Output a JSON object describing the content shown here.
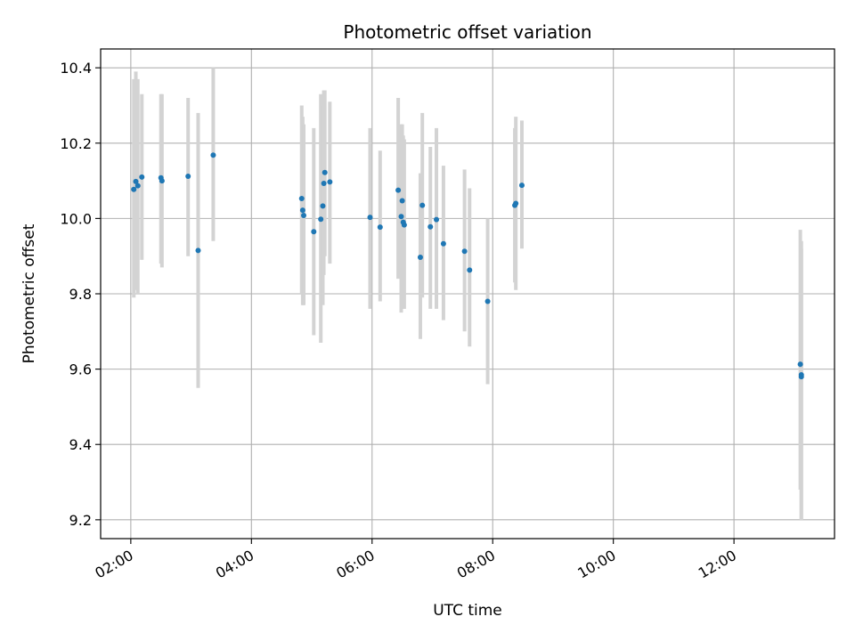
{
  "chart_data": {
    "type": "scatter",
    "title": "Photometric offset variation",
    "xlabel": "UTC time",
    "ylabel": "Photometric offset",
    "xlim": [
      "01:30",
      "13:40"
    ],
    "ylim": [
      9.15,
      10.45
    ],
    "x_ticks": [
      "02:00",
      "04:00",
      "06:00",
      "08:00",
      "10:00",
      "12:00"
    ],
    "y_ticks": [
      9.2,
      9.4,
      9.6,
      9.8,
      10.0,
      10.2,
      10.4
    ],
    "grid": true,
    "legend": "none",
    "point_color": "#1f77b4",
    "errorbar_color": "#d3d3d3",
    "points": [
      {
        "x": "02:03",
        "y": 10.077,
        "low": 9.79,
        "high": 10.37
      },
      {
        "x": "02:05",
        "y": 10.098,
        "low": 9.81,
        "high": 10.39
      },
      {
        "x": "02:07",
        "y": 10.087,
        "low": 9.8,
        "high": 10.37
      },
      {
        "x": "02:11",
        "y": 10.11,
        "low": 9.89,
        "high": 10.33
      },
      {
        "x": "02:30",
        "y": 10.108,
        "low": 9.88,
        "high": 10.33
      },
      {
        "x": "02:31",
        "y": 10.1,
        "low": 9.87,
        "high": 10.33
      },
      {
        "x": "02:57",
        "y": 10.112,
        "low": 9.9,
        "high": 10.32
      },
      {
        "x": "03:07",
        "y": 9.915,
        "low": 9.55,
        "high": 10.28
      },
      {
        "x": "03:22",
        "y": 10.168,
        "low": 9.94,
        "high": 10.4
      },
      {
        "x": "04:50",
        "y": 10.053,
        "low": 9.8,
        "high": 10.3
      },
      {
        "x": "04:51",
        "y": 10.022,
        "low": 9.77,
        "high": 10.27
      },
      {
        "x": "04:52",
        "y": 10.008,
        "low": 9.77,
        "high": 10.25
      },
      {
        "x": "05:02",
        "y": 9.965,
        "low": 9.69,
        "high": 10.24
      },
      {
        "x": "05:09",
        "y": 9.998,
        "low": 9.67,
        "high": 10.33
      },
      {
        "x": "05:11",
        "y": 10.033,
        "low": 9.77,
        "high": 10.3
      },
      {
        "x": "05:12",
        "y": 10.093,
        "low": 9.85,
        "high": 10.34
      },
      {
        "x": "05:13",
        "y": 10.122,
        "low": 9.9,
        "high": 10.34
      },
      {
        "x": "05:18",
        "y": 10.097,
        "low": 9.88,
        "high": 10.31
      },
      {
        "x": "05:58",
        "y": 10.003,
        "low": 9.76,
        "high": 10.24
      },
      {
        "x": "06:08",
        "y": 9.977,
        "low": 9.78,
        "high": 10.18
      },
      {
        "x": "06:26",
        "y": 10.075,
        "low": 9.84,
        "high": 10.32
      },
      {
        "x": "06:29",
        "y": 10.005,
        "low": 9.75,
        "high": 10.25
      },
      {
        "x": "06:30",
        "y": 10.047,
        "low": 9.85,
        "high": 10.25
      },
      {
        "x": "06:31",
        "y": 9.99,
        "low": 9.76,
        "high": 10.22
      },
      {
        "x": "06:32",
        "y": 9.983,
        "low": 9.76,
        "high": 10.21
      },
      {
        "x": "06:48",
        "y": 9.897,
        "low": 9.68,
        "high": 10.12
      },
      {
        "x": "06:50",
        "y": 10.035,
        "low": 9.79,
        "high": 10.28
      },
      {
        "x": "06:58",
        "y": 9.978,
        "low": 9.76,
        "high": 10.19
      },
      {
        "x": "07:04",
        "y": 9.997,
        "low": 9.76,
        "high": 10.24
      },
      {
        "x": "07:11",
        "y": 9.933,
        "low": 9.73,
        "high": 10.14
      },
      {
        "x": "07:32",
        "y": 9.913,
        "low": 9.7,
        "high": 10.13
      },
      {
        "x": "07:37",
        "y": 9.863,
        "low": 9.66,
        "high": 10.08
      },
      {
        "x": "07:55",
        "y": 9.78,
        "low": 9.56,
        "high": 10.0
      },
      {
        "x": "08:22",
        "y": 10.035,
        "low": 9.83,
        "high": 10.24
      },
      {
        "x": "08:23",
        "y": 10.04,
        "low": 9.81,
        "high": 10.27
      },
      {
        "x": "08:29",
        "y": 10.088,
        "low": 9.92,
        "high": 10.26
      },
      {
        "x": "13:06",
        "y": 9.613,
        "low": 9.28,
        "high": 9.97
      },
      {
        "x": "13:07",
        "y": 9.585,
        "low": 9.2,
        "high": 9.94
      },
      {
        "x": "13:07",
        "y": 9.58,
        "low": 9.2,
        "high": 9.92
      }
    ]
  }
}
